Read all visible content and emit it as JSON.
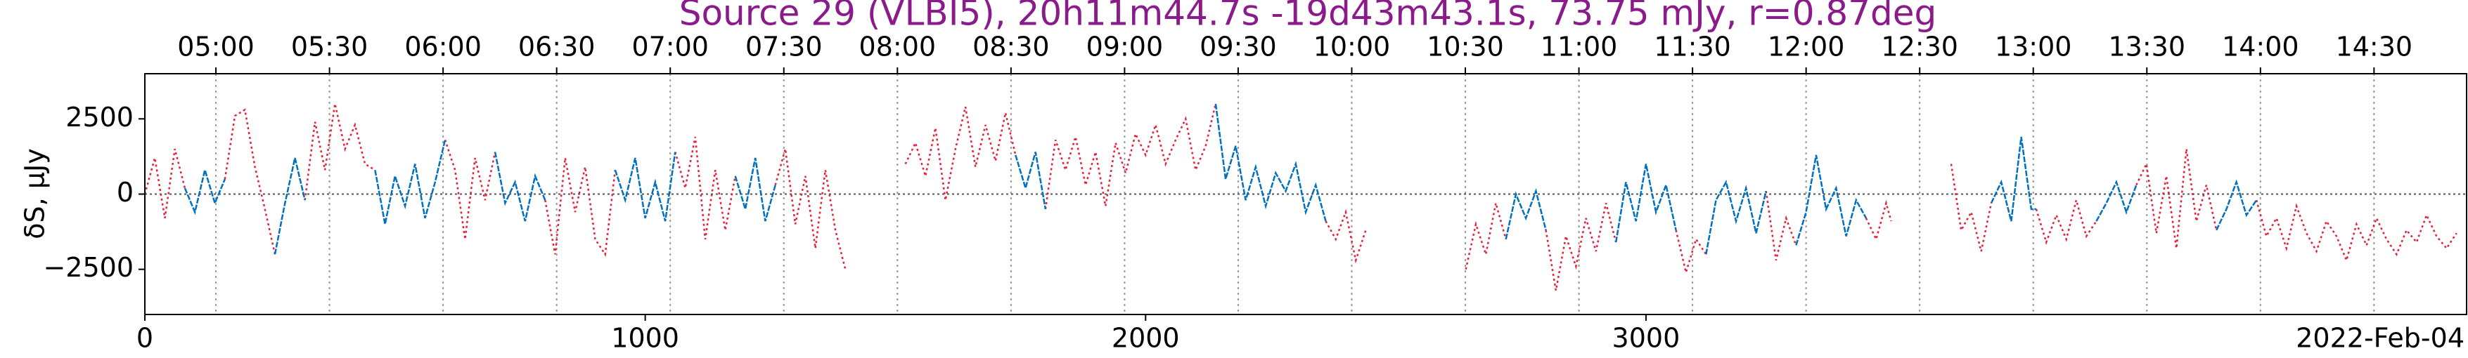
{
  "chart_data": {
    "type": "line",
    "title": "Source 29 (VLBI5), 20h11m44.7s -19d43m43.1s, 73.75 mJy, r=0.87deg",
    "ylabel": "δS, μJy",
    "date_label": "2022-Feb-04",
    "xlim": [
      0,
      4640
    ],
    "ylim": [
      -4000,
      4000
    ],
    "xticks": [
      0,
      1000,
      2000,
      3000
    ],
    "yticks": [
      {
        "value": -2500,
        "label": "−2500"
      },
      0,
      2500
    ],
    "top_ticks": [
      {
        "value": 142,
        "label": "05:00"
      },
      {
        "value": 369,
        "label": "05:30"
      },
      {
        "value": 596,
        "label": "06:00"
      },
      {
        "value": 823,
        "label": "06:30"
      },
      {
        "value": 1050,
        "label": "07:00"
      },
      {
        "value": 1277,
        "label": "07:30"
      },
      {
        "value": 1504,
        "label": "08:00"
      },
      {
        "value": 1731,
        "label": "08:30"
      },
      {
        "value": 1958,
        "label": "09:00"
      },
      {
        "value": 2185,
        "label": "09:30"
      },
      {
        "value": 2412,
        "label": "10:00"
      },
      {
        "value": 2639,
        "label": "10:30"
      },
      {
        "value": 2866,
        "label": "11:00"
      },
      {
        "value": 3093,
        "label": "11:30"
      },
      {
        "value": 3320,
        "label": "12:00"
      },
      {
        "value": 3547,
        "label": "12:30"
      },
      {
        "value": 3774,
        "label": "13:00"
      },
      {
        "value": 4001,
        "label": "13:30"
      },
      {
        "value": 4228,
        "label": "14:00"
      },
      {
        "value": 4455,
        "label": "14:30"
      }
    ],
    "grid": true,
    "series": [
      {
        "color": "#e8213a",
        "dash": "3,4",
        "x": [
          0,
          20,
          40,
          60,
          80,
          null,
          160,
          180,
          200,
          220,
          240,
          260,
          null,
          320,
          340,
          360,
          380,
          400,
          420,
          440,
          460,
          null,
          600,
          620,
          640,
          660,
          680,
          700,
          null,
          800,
          820,
          840,
          860,
          880,
          900,
          920,
          940,
          null,
          1060,
          1080,
          1100,
          1120,
          1140,
          1160,
          1180,
          null,
          1260,
          1280,
          1300,
          1320,
          1340,
          1360,
          1380,
          1400,
          null,
          1520,
          1540,
          1560,
          1580,
          1600,
          1620,
          1640,
          1660,
          1680,
          1700,
          1720,
          1740,
          null,
          1800,
          1820,
          1840,
          1860,
          1880,
          1900,
          1920,
          1940,
          1960,
          1980,
          2000,
          2020,
          2040,
          2060,
          2080,
          2100,
          2120,
          2140,
          null,
          2360,
          2380,
          2400,
          2420,
          2440,
          null,
          2640,
          2660,
          2680,
          2700,
          2720,
          null,
          2800,
          2820,
          2840,
          2860,
          2880,
          2900,
          2920,
          2940,
          null,
          3060,
          3080,
          3100,
          3120,
          null,
          3240,
          3260,
          3280,
          3300,
          null,
          3440,
          3460,
          3480,
          3490,
          null,
          3610,
          3630,
          3650,
          3670,
          3690,
          null,
          3780,
          3800,
          3820,
          3840,
          3860,
          3880,
          3900,
          null,
          3980,
          4000,
          4020,
          4040,
          4060,
          4080,
          4100,
          4120,
          4140,
          null,
          4220,
          4240,
          4260,
          4280,
          4300,
          4320,
          4340,
          4360,
          4380,
          4400,
          4420,
          4440,
          4460,
          4480,
          4500,
          4520,
          4540,
          4560,
          4580,
          4600,
          4620
        ],
        "values": [
          0,
          1200,
          -800,
          1500,
          200,
          null,
          500,
          2600,
          2800,
          900,
          -500,
          -2000,
          null,
          -200,
          2400,
          800,
          3000,
          1500,
          2300,
          1000,
          800,
          null,
          1800,
          800,
          -1500,
          1200,
          -200,
          1400,
          null,
          -200,
          -2000,
          1200,
          -600,
          900,
          -1500,
          -2000,
          800,
          null,
          1400,
          200,
          1900,
          -1500,
          800,
          -1200,
          600,
          null,
          300,
          1500,
          -1000,
          600,
          -1800,
          800,
          -1200,
          -2500,
          null,
          1000,
          1700,
          600,
          2200,
          -200,
          1500,
          2900,
          900,
          2300,
          1100,
          2700,
          1300,
          null,
          -500,
          1800,
          800,
          1900,
          300,
          1400,
          -400,
          1700,
          700,
          2000,
          1300,
          2300,
          1000,
          1800,
          2500,
          800,
          1600,
          3000,
          null,
          -900,
          -1500,
          -600,
          -2200,
          -1200,
          null,
          -2500,
          -1000,
          -2000,
          -300,
          -1500,
          null,
          -1200,
          -3200,
          -1400,
          -2400,
          -800,
          -1900,
          -300,
          -1600,
          null,
          -1200,
          -2600,
          -1500,
          -2000,
          null,
          100,
          -2200,
          -800,
          -1700,
          null,
          -800,
          -1500,
          -300,
          -900,
          null,
          1000,
          -1200,
          -600,
          -1900,
          -300,
          null,
          -500,
          -1600,
          -700,
          -1500,
          -200,
          -1400,
          -900,
          null,
          300,
          1000,
          -1300,
          600,
          -1800,
          1500,
          -900,
          300,
          -1200,
          null,
          -200,
          -1400,
          -800,
          -1800,
          -400,
          -1300,
          -1900,
          -900,
          -1400,
          -2200,
          -1000,
          -1700,
          -800,
          -1500,
          -2000,
          -1200,
          -1600,
          -700,
          -1400,
          -1800,
          -1300
        ]
      },
      {
        "color": "#0070c0",
        "dash": "8,2",
        "x": [
          80,
          100,
          120,
          140,
          160,
          null,
          260,
          280,
          300,
          320,
          null,
          460,
          480,
          500,
          520,
          540,
          560,
          580,
          600,
          null,
          700,
          720,
          740,
          760,
          780,
          800,
          null,
          940,
          960,
          980,
          1000,
          1020,
          1040,
          1060,
          null,
          1180,
          1200,
          1220,
          1240,
          1260,
          null,
          1740,
          1760,
          1780,
          1800,
          null,
          2140,
          2160,
          2180,
          2200,
          2220,
          2240,
          2260,
          2280,
          2300,
          2320,
          2340,
          2360,
          null,
          2720,
          2740,
          2760,
          2780,
          2800,
          null,
          2940,
          2960,
          2980,
          3000,
          3020,
          3040,
          3060,
          null,
          3120,
          3140,
          3160,
          3180,
          3200,
          3220,
          3240,
          null,
          3300,
          3320,
          3340,
          3360,
          3380,
          3400,
          3420,
          3440,
          null,
          3690,
          3710,
          3730,
          3750,
          3770,
          3780,
          null,
          3900,
          3920,
          3940,
          3960,
          3980,
          null,
          4140,
          4160,
          4180,
          4200,
          4220
        ],
        "values": [
          200,
          -600,
          800,
          -300,
          500,
          null,
          -2000,
          -300,
          1200,
          -200,
          null,
          800,
          -1000,
          600,
          -400,
          1000,
          -800,
          400,
          1800,
          null,
          1400,
          -300,
          400,
          -900,
          600,
          -200,
          null,
          800,
          -200,
          1200,
          -800,
          400,
          -900,
          1400,
          null,
          600,
          -500,
          1200,
          -900,
          300,
          null,
          1300,
          200,
          1400,
          -500,
          null,
          3000,
          500,
          1600,
          -200,
          900,
          -400,
          700,
          100,
          1000,
          -600,
          300,
          -900,
          null,
          -1500,
          0,
          -800,
          100,
          -1200,
          null,
          -1600,
          400,
          -900,
          1000,
          -600,
          300,
          -1200,
          null,
          -2000,
          -200,
          400,
          -900,
          200,
          -1300,
          100,
          null,
          -1700,
          -600,
          1300,
          -500,
          200,
          -1400,
          -200,
          -800,
          null,
          -300,
          400,
          -900,
          1900,
          -500,
          -500,
          null,
          -900,
          -300,
          400,
          -600,
          300,
          null,
          -1200,
          -500,
          400,
          -700,
          -200
        ]
      }
    ]
  }
}
